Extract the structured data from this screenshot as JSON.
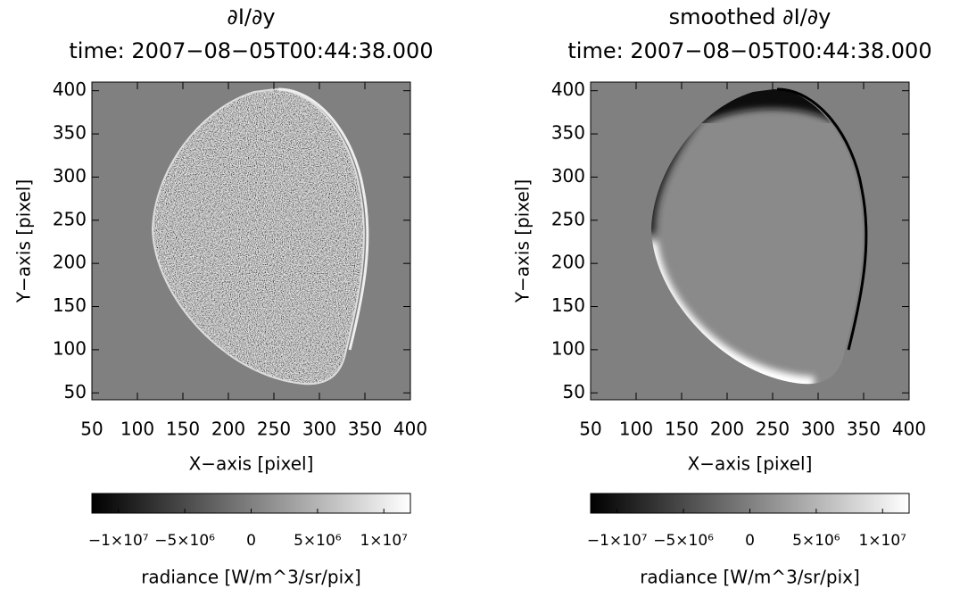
{
  "chart_data": [
    {
      "type": "image",
      "title": [
        "∂I/∂y",
        "time: 2007−08−05T00:44:38.000"
      ],
      "xlabel": "X−axis [pixel]",
      "ylabel": "Y−axis [pixel]",
      "xlim": [
        50,
        400
      ],
      "xticks": [
        50,
        100,
        150,
        200,
        250,
        300,
        350,
        400
      ],
      "ylim": [
        42,
        410
      ],
      "yticks": [
        50,
        100,
        150,
        200,
        250,
        300,
        350,
        400
      ],
      "colorbar": {
        "label": "radiance [W/m^3/sr/pix]",
        "lim": [
          -12000000,
          12000000
        ],
        "colors": [
          "#000000",
          "#ffffff"
        ],
        "ticks": [
          {
            "value": -10000000,
            "label": "−1×10⁷"
          },
          {
            "value": -5000000,
            "label": "−5×10⁶"
          },
          {
            "value": 0,
            "label": "0"
          },
          {
            "value": 5000000,
            "label": "5×10⁶"
          },
          {
            "value": 10000000,
            "label": "1×10⁷"
          }
        ]
      }
    },
    {
      "type": "image",
      "title": [
        "smoothed ∂I/∂y",
        "time: 2007−08−05T00:44:38.000"
      ],
      "xlabel": "X−axis [pixel]",
      "ylabel": "Y−axis [pixel]",
      "xlim": [
        50,
        400
      ],
      "xticks": [
        50,
        100,
        150,
        200,
        250,
        300,
        350,
        400
      ],
      "ylim": [
        42,
        410
      ],
      "yticks": [
        50,
        100,
        150,
        200,
        250,
        300,
        350,
        400
      ],
      "colorbar": {
        "label": "radiance [W/m^3/sr/pix]",
        "lim": [
          -12000000,
          12000000
        ],
        "colors": [
          "#000000",
          "#ffffff"
        ],
        "ticks": [
          {
            "value": -10000000,
            "label": "−1×10⁷"
          },
          {
            "value": -5000000,
            "label": "−5×10⁶"
          },
          {
            "value": 0,
            "label": "0"
          },
          {
            "value": 5000000,
            "label": "5×10⁶"
          },
          {
            "value": 10000000,
            "label": "1×10⁷"
          }
        ]
      }
    }
  ]
}
